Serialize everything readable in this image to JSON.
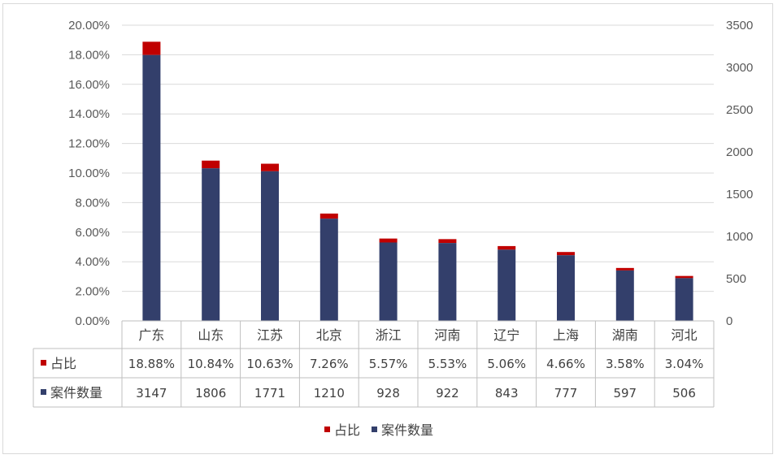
{
  "chart_data": {
    "type": "bar",
    "categories": [
      "广东",
      "山东",
      "江苏",
      "北京",
      "浙江",
      "河南",
      "辽宁",
      "上海",
      "湖南",
      "河北"
    ],
    "series": [
      {
        "name": "占比",
        "color": "#c00000",
        "values": [
          18.88,
          10.84,
          10.63,
          7.26,
          5.57,
          5.53,
          5.06,
          4.66,
          3.58,
          3.04
        ],
        "labels": [
          "18.88%",
          "10.84%",
          "10.63%",
          "7.26%",
          "5.57%",
          "5.53%",
          "5.06%",
          "4.66%",
          "3.58%",
          "3.04%"
        ]
      },
      {
        "name": "案件数量",
        "color": "#333f6b",
        "values": [
          3147,
          1806,
          1771,
          1210,
          928,
          922,
          843,
          777,
          597,
          506
        ],
        "labels": [
          "3147",
          "1806",
          "1771",
          "1210",
          "928",
          "922",
          "843",
          "777",
          "597",
          "506"
        ]
      }
    ],
    "left_axis": {
      "ylim": [
        0,
        20
      ],
      "ticks": [
        "0.00%",
        "2.00%",
        "4.00%",
        "6.00%",
        "8.00%",
        "10.00%",
        "12.00%",
        "14.00%",
        "16.00%",
        "18.00%",
        "20.00%"
      ]
    },
    "right_axis": {
      "ylim": [
        0,
        3500
      ],
      "ticks": [
        "0",
        "500",
        "1000",
        "1500",
        "2000",
        "2500",
        "3000",
        "3500"
      ]
    },
    "grid": true,
    "legend": {
      "placement": "bottom",
      "items": [
        "占比",
        "案件数量"
      ]
    },
    "data_table": true
  }
}
